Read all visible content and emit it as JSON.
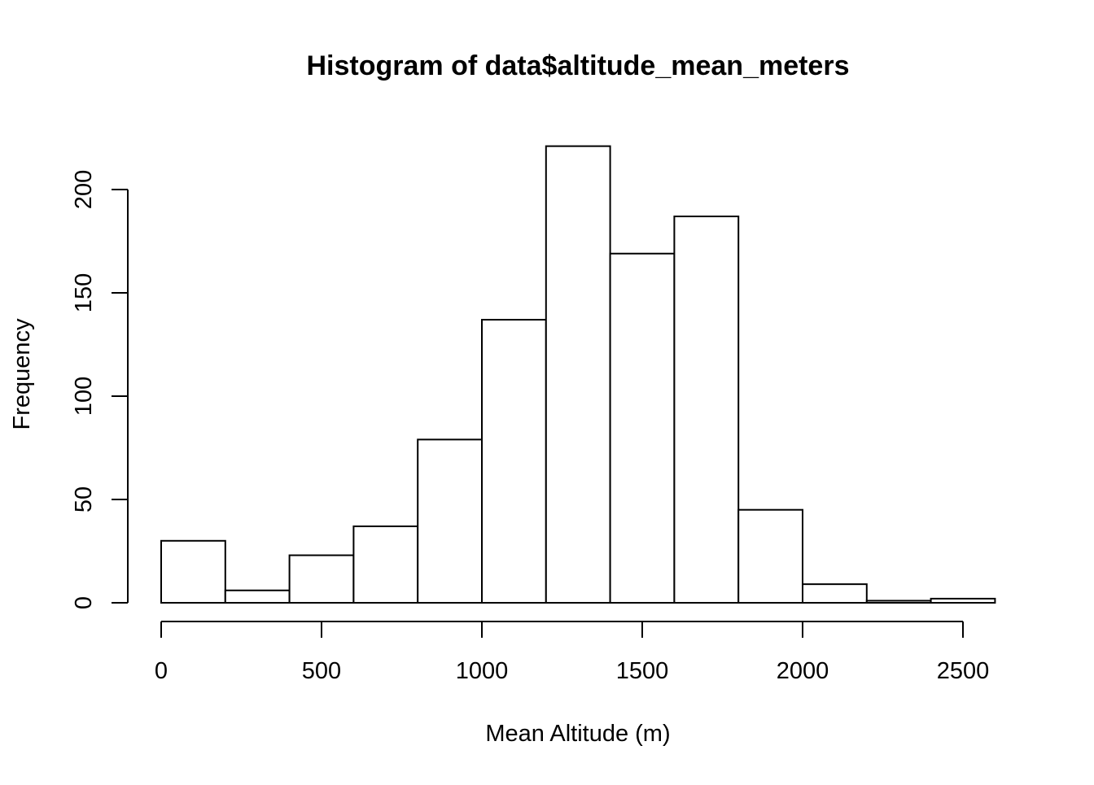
{
  "chart_data": {
    "type": "bar",
    "title": "Histogram of data$altitude_mean_meters",
    "xlabel": "Mean Altitude (m)",
    "ylabel": "Frequency",
    "bins": [
      {
        "from": 0,
        "to": 200,
        "count": 30
      },
      {
        "from": 200,
        "to": 400,
        "count": 6
      },
      {
        "from": 400,
        "to": 600,
        "count": 23
      },
      {
        "from": 600,
        "to": 800,
        "count": 37
      },
      {
        "from": 800,
        "to": 1000,
        "count": 79
      },
      {
        "from": 1000,
        "to": 1200,
        "count": 137
      },
      {
        "from": 1200,
        "to": 1400,
        "count": 221
      },
      {
        "from": 1400,
        "to": 1600,
        "count": 169
      },
      {
        "from": 1600,
        "to": 1800,
        "count": 187
      },
      {
        "from": 1800,
        "to": 2000,
        "count": 45
      },
      {
        "from": 2000,
        "to": 2200,
        "count": 9
      },
      {
        "from": 2200,
        "to": 2400,
        "count": 1
      },
      {
        "from": 2400,
        "to": 2600,
        "count": 2
      }
    ],
    "xticks": [
      0,
      500,
      1000,
      1500,
      2000,
      2500
    ],
    "yticks": [
      0,
      50,
      100,
      150,
      200
    ],
    "xlim": [
      0,
      2600
    ],
    "ylim": [
      0,
      221
    ],
    "grid": false,
    "colors": {
      "bar_fill": "#ffffff",
      "bar_stroke": "#000000",
      "axis": "#000000"
    }
  }
}
